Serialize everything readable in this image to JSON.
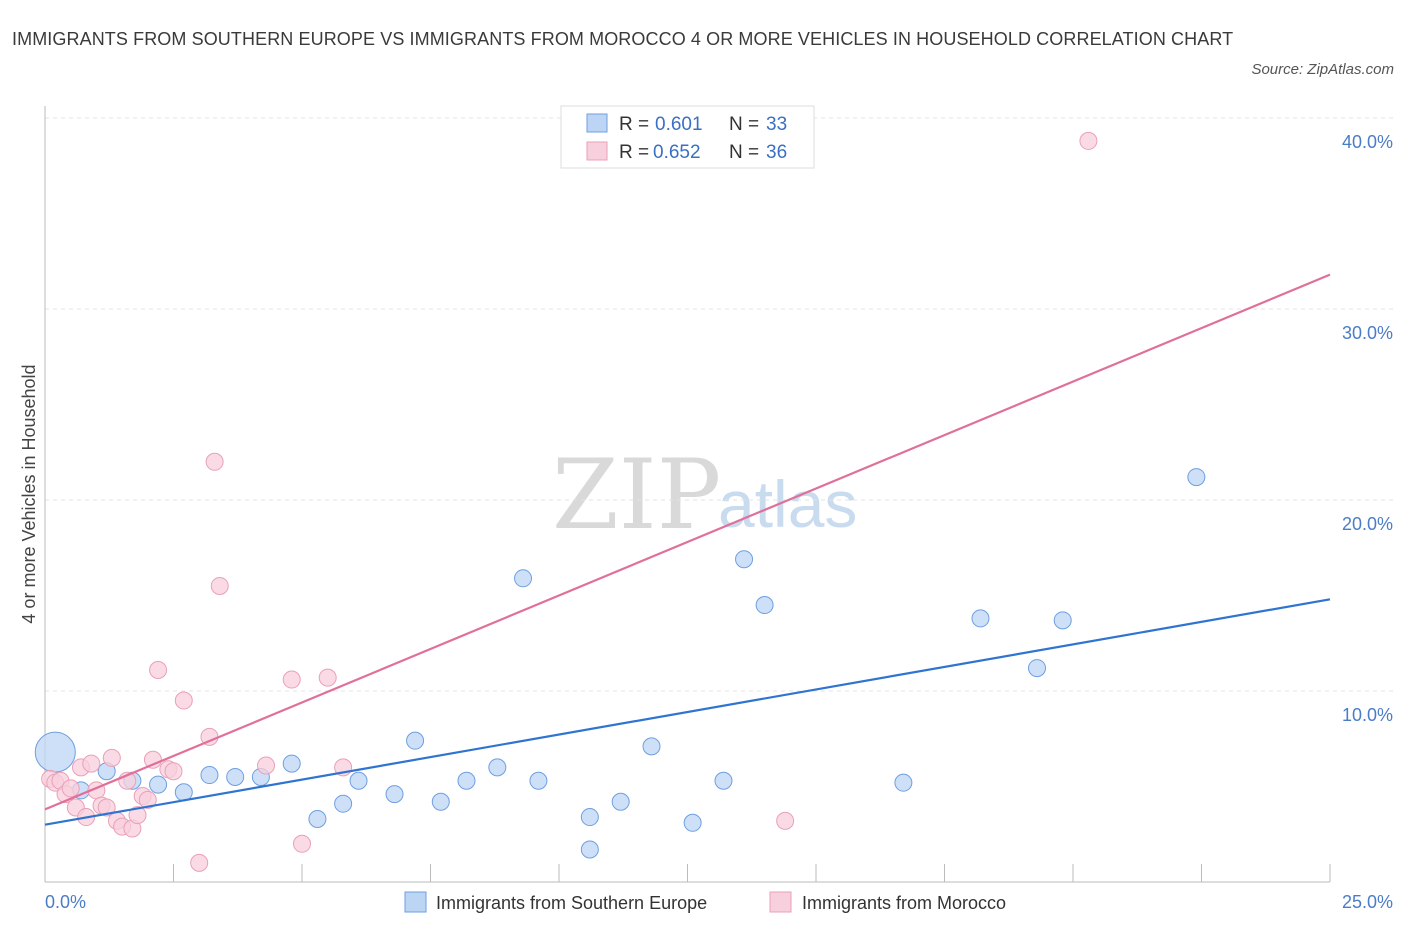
{
  "chart_data": {
    "type": "scatter",
    "title": "IMMIGRANTS FROM SOUTHERN EUROPE VS IMMIGRANTS FROM MOROCCO 4 OR MORE VEHICLES IN HOUSEHOLD CORRELATION CHART",
    "source": "Source: ZipAtlas.com",
    "ylabel": "4 or more Vehicles in Household",
    "xlim": [
      0,
      25
    ],
    "ylim": [
      0,
      40
    ],
    "x_tick_labels": [
      "0.0%",
      "25.0%"
    ],
    "y_ticks": [
      10,
      20,
      30,
      40
    ],
    "y_tick_labels": [
      "10.0%",
      "20.0%",
      "30.0%",
      "40.0%"
    ],
    "watermark": [
      "ZIP",
      "atlas"
    ],
    "stats": [
      {
        "r_label": "R =",
        "r": "0.601",
        "n_label": "N =",
        "n": "33"
      },
      {
        "r_label": "R =",
        "r": "0.652",
        "n_label": "N =",
        "n": "36"
      }
    ],
    "series": [
      {
        "name": "Immigrants from Southern Europe",
        "color": "#6e9fe0",
        "fill": "#bdd5f4",
        "line_color": "#2f74d0",
        "trend": [
          [
            0,
            3.0
          ],
          [
            25,
            14.8
          ]
        ],
        "points": [
          [
            0.2,
            6.8,
            3
          ],
          [
            1.2,
            5.8,
            1
          ],
          [
            0.7,
            4.8,
            1
          ],
          [
            1.7,
            5.3,
            1
          ],
          [
            2.2,
            5.1,
            1
          ],
          [
            2.7,
            4.7,
            1
          ],
          [
            3.2,
            5.6,
            1
          ],
          [
            3.7,
            5.5,
            1
          ],
          [
            4.2,
            5.5,
            1
          ],
          [
            4.8,
            6.2,
            1
          ],
          [
            5.3,
            3.3,
            1
          ],
          [
            5.8,
            4.1,
            1
          ],
          [
            6.1,
            5.3,
            1
          ],
          [
            6.8,
            4.6,
            1
          ],
          [
            7.2,
            7.4,
            1
          ],
          [
            7.7,
            4.2,
            1
          ],
          [
            8.2,
            5.3,
            1
          ],
          [
            8.8,
            6.0,
            1
          ],
          [
            9.3,
            15.9,
            1
          ],
          [
            9.6,
            5.3,
            1
          ],
          [
            10.6,
            1.7,
            1
          ],
          [
            10.6,
            3.4,
            1
          ],
          [
            11.2,
            4.2,
            1
          ],
          [
            11.8,
            7.1,
            1
          ],
          [
            12.6,
            3.1,
            1
          ],
          [
            13.2,
            5.3,
            1
          ],
          [
            13.6,
            16.9,
            1
          ],
          [
            14.0,
            14.5,
            1
          ],
          [
            16.7,
            5.2,
            1
          ],
          [
            18.2,
            13.8,
            1
          ],
          [
            19.3,
            11.2,
            1
          ],
          [
            19.8,
            13.7,
            1
          ],
          [
            22.4,
            21.2,
            1
          ]
        ]
      },
      {
        "name": "Immigrants from Morocco",
        "color": "#eaa0b7",
        "fill": "#f8cfdc",
        "line_color": "#e0709a",
        "trend": [
          [
            0,
            3.8
          ],
          [
            25,
            31.8
          ]
        ],
        "points": [
          [
            0.1,
            5.4,
            1
          ],
          [
            0.2,
            5.2,
            1
          ],
          [
            0.3,
            5.3,
            1
          ],
          [
            0.4,
            4.6,
            1
          ],
          [
            0.5,
            4.9,
            1
          ],
          [
            0.6,
            3.9,
            1
          ],
          [
            0.7,
            6.0,
            1
          ],
          [
            0.8,
            3.4,
            1
          ],
          [
            0.9,
            6.2,
            1
          ],
          [
            1.0,
            4.8,
            1
          ],
          [
            1.1,
            4.0,
            1
          ],
          [
            1.2,
            3.9,
            1
          ],
          [
            1.3,
            6.5,
            1
          ],
          [
            1.4,
            3.2,
            1
          ],
          [
            1.5,
            2.9,
            1
          ],
          [
            1.6,
            5.3,
            1
          ],
          [
            1.7,
            2.8,
            1
          ],
          [
            1.8,
            3.5,
            1
          ],
          [
            1.9,
            4.5,
            1
          ],
          [
            2.0,
            4.3,
            1
          ],
          [
            2.1,
            6.4,
            1
          ],
          [
            2.2,
            11.1,
            1
          ],
          [
            2.4,
            5.9,
            1
          ],
          [
            2.5,
            5.8,
            1
          ],
          [
            2.7,
            9.5,
            1
          ],
          [
            3.0,
            1.0,
            1
          ],
          [
            3.2,
            7.6,
            1
          ],
          [
            3.3,
            22.0,
            1
          ],
          [
            3.4,
            15.5,
            1
          ],
          [
            4.3,
            6.1,
            1
          ],
          [
            4.8,
            10.6,
            1
          ],
          [
            5.0,
            2.0,
            1
          ],
          [
            5.5,
            10.7,
            1
          ],
          [
            5.8,
            6.0,
            1
          ],
          [
            14.4,
            3.2,
            1
          ],
          [
            20.3,
            38.8,
            1
          ]
        ]
      }
    ]
  }
}
